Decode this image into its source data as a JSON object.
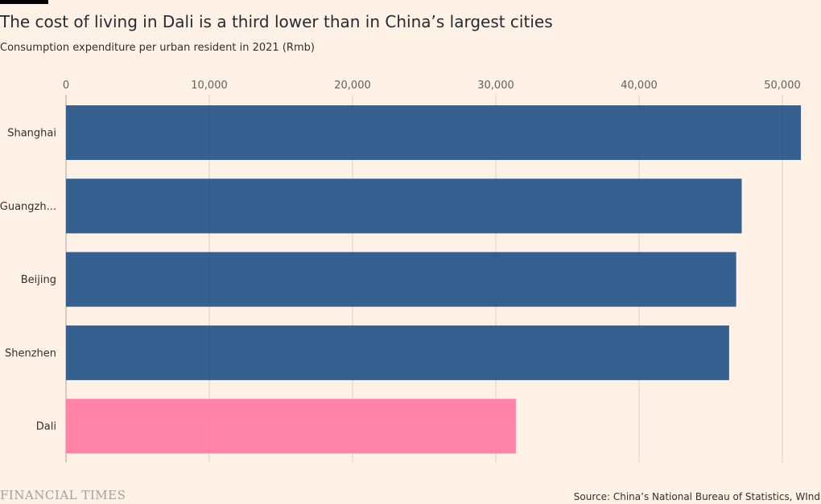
{
  "header": {
    "title": "The cost of living in Dali is a third lower than in China’s largest cities",
    "subtitle": "Consumption expenditure per urban resident in 2021 (Rmb)"
  },
  "footer": {
    "logo": "FINANCIAL TIMES",
    "source": "Source: China’s National Bureau of Statistics, WInd"
  },
  "chart_data": {
    "type": "bar",
    "orientation": "horizontal",
    "title": "The cost of living in Dali is a third lower than in China’s largest cities",
    "subtitle": "Consumption expenditure per urban resident in 2021 (Rmb)",
    "categories": [
      "Shanghai",
      "Guangzh...",
      "Beijing",
      "Shenzhen",
      "Dali"
    ],
    "values": [
      51295,
      47162,
      46776,
      46286,
      31400
    ],
    "colors": [
      "#2e5b8c",
      "#2e5b8c",
      "#2e5b8c",
      "#2e5b8c",
      "#ff80a4"
    ],
    "xlim": [
      0,
      52000
    ],
    "ticks": [
      0,
      10000,
      20000,
      30000,
      40000,
      50000
    ],
    "tick_labels": [
      "0",
      "10,000",
      "20,000",
      "30,000",
      "40,000",
      "50,000"
    ],
    "axis_position": "top",
    "grid": true
  }
}
